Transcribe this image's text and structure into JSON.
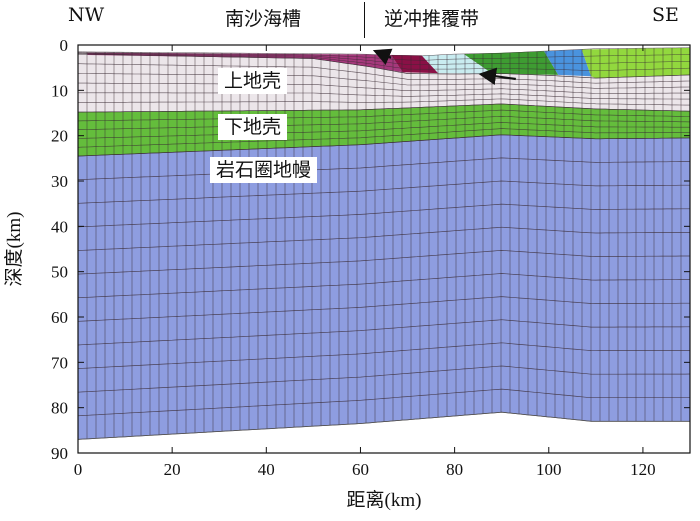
{
  "header": {
    "left_label": "NW",
    "mid_label": "南沙海槽",
    "right_group_label": "逆冲推覆带",
    "right_label": "SE"
  },
  "axes": {
    "x_title": "距离(km)",
    "y_title": "深度(km)",
    "x_ticks": [
      "0",
      "20",
      "40",
      "60",
      "80",
      "100",
      "120"
    ],
    "y_ticks": [
      "0",
      "10",
      "20",
      "30",
      "40",
      "50",
      "60",
      "70",
      "80",
      "90"
    ],
    "x_range": [
      0,
      130
    ],
    "y_range": [
      0,
      90
    ],
    "y_inverted": true
  },
  "layers": {
    "upper_crust": "上地壳",
    "lower_crust": "下地壳",
    "mantle": "岩石圈地幔"
  },
  "colors": {
    "mantle": "#8e9de0",
    "lower_crust": "#64bd3c",
    "upper_crust": "#ece6ea",
    "sediment_magenta": "#a5387c",
    "sediment_dark_red": "#8a1046",
    "sediment_cyan": "#c9ecf0",
    "sediment_green": "#3e9c32",
    "sediment_blue": "#4a93de",
    "sediment_lime": "#92d83e",
    "mesh_line": "#3a2a33"
  },
  "arrows": [
    {
      "name": "thrust-arrow-left",
      "from": [
        66.5,
        2.8
      ],
      "to": [
        63.5,
        1.5
      ]
    },
    {
      "name": "thrust-arrow-right",
      "from": [
        93,
        7.5
      ],
      "to": [
        86,
        6.5
      ]
    }
  ],
  "boundaries": {
    "surface": [
      [
        0,
        1.5
      ],
      [
        60,
        2.0
      ],
      [
        65,
        2.2
      ],
      [
        73,
        2.4
      ],
      [
        80,
        2.0
      ],
      [
        90,
        1.8
      ],
      [
        102,
        1.2
      ],
      [
        110,
        0.8
      ],
      [
        130,
        0.6
      ]
    ],
    "sediment_base": [
      [
        0,
        2.0
      ],
      [
        50,
        3.0
      ],
      [
        62,
        4.8
      ],
      [
        70,
        6.3
      ],
      [
        80,
        6.4
      ],
      [
        90,
        6.3
      ],
      [
        100,
        6.7
      ],
      [
        110,
        7.3
      ],
      [
        130,
        6.6
      ]
    ],
    "upper_lower_crust": [
      [
        0,
        14.8
      ],
      [
        60,
        14.3
      ],
      [
        90,
        13.0
      ],
      [
        110,
        14.1
      ],
      [
        130,
        14.6
      ]
    ],
    "lower_crust_mantle": [
      [
        0,
        24.5
      ],
      [
        60,
        22.0
      ],
      [
        90,
        19.8
      ],
      [
        110,
        20.7
      ],
      [
        130,
        20.5
      ]
    ],
    "model_base": [
      [
        0,
        87.0
      ],
      [
        60,
        83.5
      ],
      [
        90,
        81.0
      ],
      [
        109,
        83.0
      ],
      [
        130,
        83.0
      ]
    ]
  },
  "sediment_blocks": [
    {
      "name": "sediment-magenta-block",
      "color_key": "sediment_magenta",
      "polygon": [
        [
          2,
          1.7
        ],
        [
          62,
          2.1
        ],
        [
          66.5,
          2.2
        ],
        [
          69,
          6.0
        ],
        [
          62,
          4.8
        ],
        [
          50,
          3.0
        ],
        [
          2,
          2.2
        ]
      ]
    },
    {
      "name": "sediment-dark-red-block",
      "color_key": "sediment_dark_red",
      "polygon": [
        [
          66.5,
          2.2
        ],
        [
          73,
          2.3
        ],
        [
          76.5,
          6.2
        ],
        [
          69,
          6.0
        ]
      ]
    },
    {
      "name": "sediment-cyan-block",
      "color_key": "sediment_cyan",
      "polygon": [
        [
          73,
          2.3
        ],
        [
          82,
          2.0
        ],
        [
          88,
          6.3
        ],
        [
          76.5,
          6.2
        ]
      ]
    },
    {
      "name": "sediment-green-block",
      "color_key": "sediment_green",
      "polygon": [
        [
          82,
          2.0
        ],
        [
          99,
          1.4
        ],
        [
          102,
          6.6
        ],
        [
          88,
          6.3
        ]
      ]
    },
    {
      "name": "sediment-blue-block",
      "color_key": "sediment_blue",
      "polygon": [
        [
          99,
          1.4
        ],
        [
          107,
          1.0
        ],
        [
          109,
          6.9
        ],
        [
          102,
          6.6
        ]
      ]
    },
    {
      "name": "sediment-lime-block",
      "color_key": "sediment_lime",
      "polygon": [
        [
          107,
          1.0
        ],
        [
          130,
          0.6
        ],
        [
          130,
          6.6
        ],
        [
          110,
          7.3
        ],
        [
          109,
          6.9
        ]
      ]
    }
  ]
}
